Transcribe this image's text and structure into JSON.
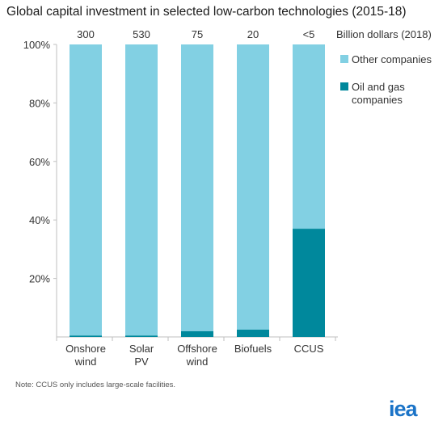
{
  "title": "Global capital investment in selected low-carbon technologies (2015-18)",
  "note": "Note: CCUS only includes large-scale facilities.",
  "logo_text": "iea",
  "chart_data": {
    "type": "bar",
    "stacked": true,
    "categories": [
      [
        "Onshore",
        "wind"
      ],
      [
        "Solar",
        "PV"
      ],
      [
        "Offshore",
        "wind"
      ],
      [
        "Biofuels"
      ],
      [
        "CCUS"
      ]
    ],
    "top_labels": [
      "300",
      "530",
      "75",
      "20",
      "<5"
    ],
    "top_labels_unit": "Billion dollars (2018)",
    "series": [
      {
        "name": "Oil and gas companies",
        "color": "#00889c",
        "values": [
          0.5,
          0.5,
          2,
          2.5,
          37
        ]
      },
      {
        "name": "Other companies",
        "color": "#82d0e3",
        "values": [
          99.5,
          99.5,
          98,
          97.5,
          63
        ]
      }
    ],
    "legend": [
      {
        "label": "Other companies",
        "color": "#82d0e3"
      },
      {
        "label": [
          "Oil and gas",
          "companies"
        ],
        "color": "#00889c"
      }
    ],
    "legend_position": "right",
    "ylim": [
      0,
      100
    ],
    "yticks": [
      20,
      40,
      60,
      80,
      100
    ],
    "ytick_labels": [
      "20%",
      "40%",
      "60%",
      "80%",
      "100%"
    ],
    "grid": false
  }
}
